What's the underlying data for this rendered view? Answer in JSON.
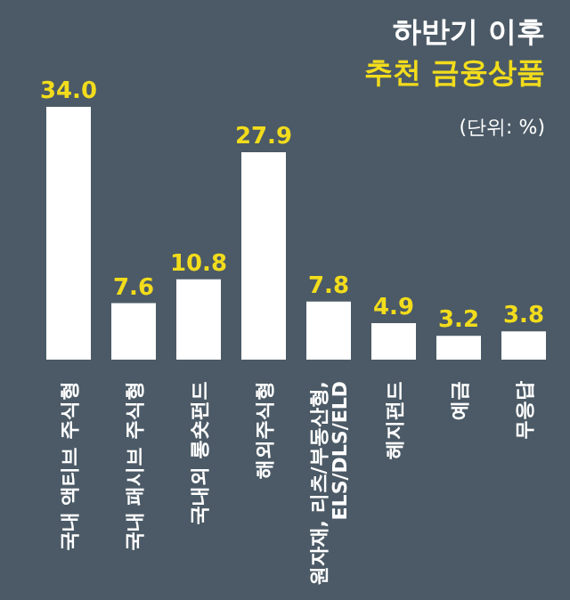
{
  "chart_data": {
    "type": "bar",
    "title": "하반기 이후",
    "subtitle": "추천 금융상품",
    "annotations": [
      "(단위: %)"
    ],
    "categories": [
      "국내 액티브 주식형",
      "국내 패시브 주식형",
      "국내외 롱숏펀드",
      "해외주식형",
      "원자재, 리츠/부동산형, ELS/DLS/ELD",
      "헤지펀드",
      "예금",
      "무응답"
    ],
    "values": [
      34.0,
      7.6,
      10.8,
      27.9,
      7.8,
      4.9,
      3.2,
      3.8
    ],
    "value_labels": [
      "34.0",
      "7.6",
      "10.8",
      "27.9",
      "7.8",
      "4.9",
      "3.2",
      "3.8"
    ],
    "color": "#ffffff",
    "grid": false,
    "legend": false
  }
}
